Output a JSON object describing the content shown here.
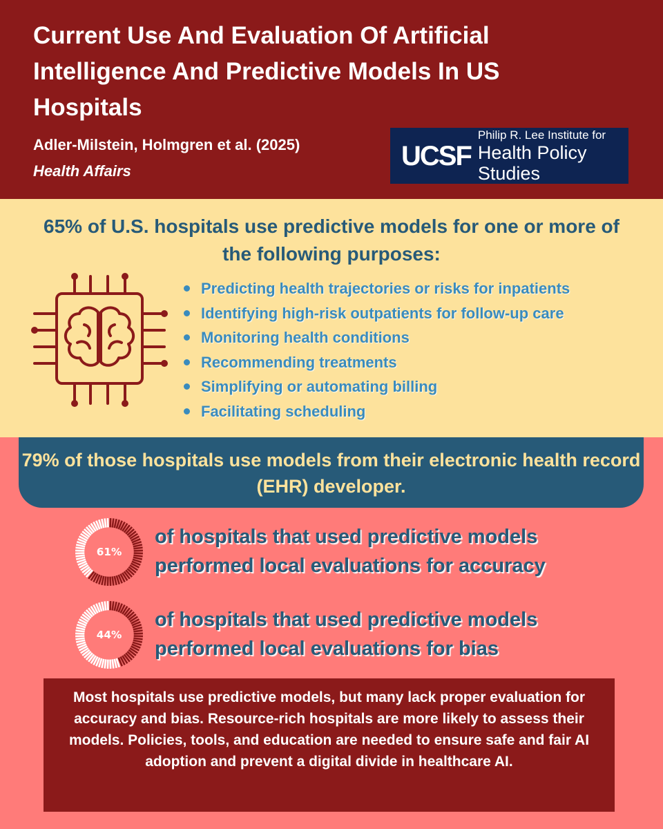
{
  "header": {
    "title": "Current Use And Evaluation Of Artificial Intelligence And Predictive Models In US Hospitals",
    "authors": "Adler-Milstein, Holmgren et al. (2025)",
    "journal": "Health Affairs",
    "logo": {
      "mark": "UCSF",
      "line1": "Philip R. Lee Institute for",
      "line2": "Health Policy Studies"
    }
  },
  "purposes_section": {
    "heading": "65% of U.S. hospitals use predictive models  for one or more of the following purposes:",
    "icon": "brain-chip-icon",
    "items": [
      "Predicting health trajectories or risks for inpatients",
      "Identifying high-risk outpatients for follow-up care",
      "Monitoring health conditions",
      "Recommending treatments",
      "Simplifying or automating billing",
      "Facilitating scheduling"
    ]
  },
  "ehr_banner": {
    "text": "79% of those hospitals use models from their electronic health record (EHR) developer."
  },
  "stats": [
    {
      "value": 61,
      "label": "61%",
      "text": "of hospitals that used predictive models performed local evaluations for accuracy"
    },
    {
      "value": 44,
      "label": "44%",
      "text": "of hospitals that used predictive models performed local evaluations for bias"
    }
  ],
  "summary": {
    "text": "Most hospitals use predictive models, but many lack proper evaluation for accuracy and bias. Resource-rich hospitals are more likely to assess their models. Policies, tools, and education are needed to ensure safe and fair AI adoption and prevent a digital divide in healthcare AI."
  },
  "colors": {
    "header_bg": "#8b1a1a",
    "yellow_bg": "#fde29c",
    "pink_bg": "#ff7b79",
    "navy": "#275a78",
    "bullet_blue": "#3a8bbd",
    "logo_bg": "#0e2452",
    "donut_filled": "#8b1a1a",
    "donut_empty": "#ffffff"
  }
}
